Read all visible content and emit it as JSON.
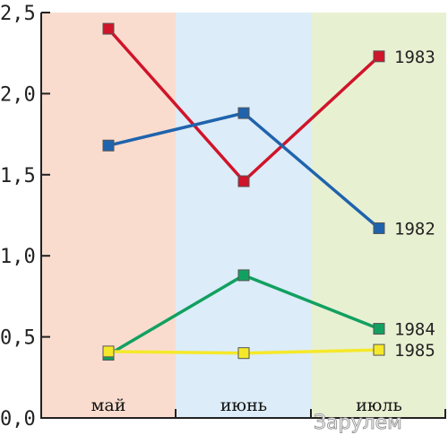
{
  "chart_data": {
    "type": "line",
    "categories": [
      "май",
      "июнь",
      "июль"
    ],
    "ylim": [
      0,
      2.5
    ],
    "yticks": [
      "0,0",
      "0,5",
      "1,0",
      "1,5",
      "2,0",
      "2,5"
    ],
    "band_colors": [
      "#fadccf",
      "#dcecf8",
      "#e8f0d2"
    ],
    "series": [
      {
        "name": "1983",
        "color": "#d0142a",
        "values": [
          2.4,
          1.46,
          2.23
        ]
      },
      {
        "name": "1982",
        "color": "#1f63ad",
        "values": [
          1.68,
          1.88,
          1.17
        ]
      },
      {
        "name": "1984",
        "color": "#12a060",
        "values": [
          0.39,
          0.88,
          0.55
        ]
      },
      {
        "name": "1985",
        "color": "#f5e82a",
        "values": [
          0.41,
          0.4,
          0.42
        ]
      }
    ]
  },
  "watermark": "Зарулем"
}
